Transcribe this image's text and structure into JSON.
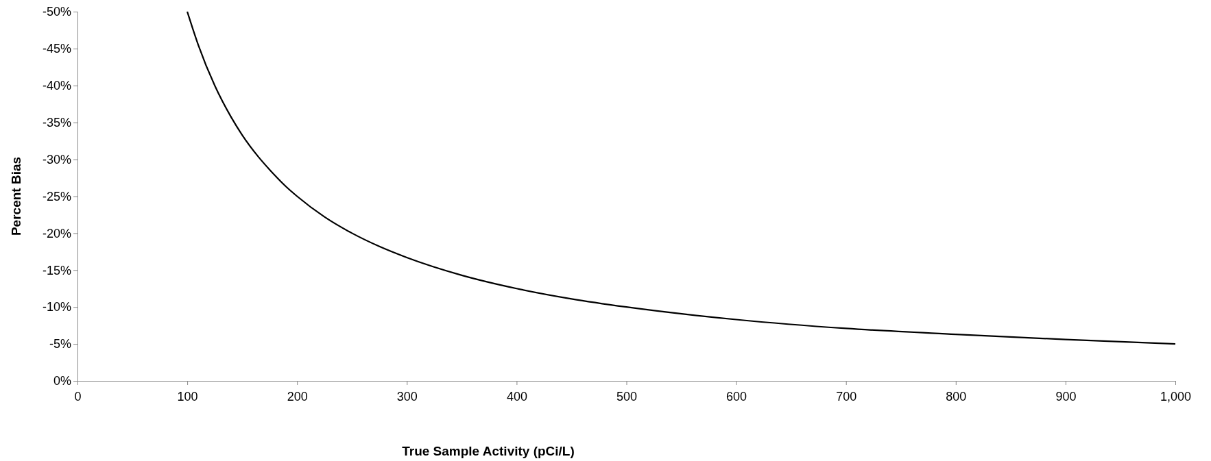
{
  "chart_data": {
    "type": "line",
    "xlabel": "True Sample Activity (pCi/L)",
    "ylabel": "Percent Bias",
    "x": [
      100,
      110,
      125,
      140,
      150,
      165,
      175,
      190,
      200,
      225,
      250,
      275,
      300,
      350,
      400,
      450,
      500,
      600,
      700,
      800,
      900,
      1000
    ],
    "series": [
      {
        "color": "#000000",
        "values": [
          -50,
          -45.5,
          -40,
          -35.7,
          -33.3,
          -30.3,
          -28.6,
          -26.3,
          -25,
          -22.2,
          -20,
          -18.2,
          -16.7,
          -14.3,
          -12.5,
          -11.1,
          -10,
          -8.3,
          -7.1,
          -6.3,
          -5.6,
          -5
        ]
      }
    ],
    "xlim": [
      0,
      1000
    ],
    "xticks": [
      0,
      100,
      200,
      300,
      400,
      500,
      600,
      700,
      800,
      900,
      {
        "value": 1000,
        "label": "1,000"
      }
    ],
    "ylim": [
      0,
      -50
    ],
    "yticks": [
      {
        "value": 0,
        "label": "0%"
      },
      {
        "value": -5,
        "label": "-5%"
      },
      {
        "value": -10,
        "label": "-10%"
      },
      {
        "value": -15,
        "label": "-15%"
      },
      {
        "value": -20,
        "label": "-20%"
      },
      {
        "value": -25,
        "label": "-25%"
      },
      {
        "value": -30,
        "label": "-30%"
      },
      {
        "value": -35,
        "label": "-35%"
      },
      {
        "value": -40,
        "label": "-40%"
      },
      {
        "value": -45,
        "label": "-45%"
      },
      {
        "value": -50,
        "label": "-50%"
      }
    ],
    "line_style": "solid",
    "marker": "none",
    "grid": false,
    "legend": false
  }
}
